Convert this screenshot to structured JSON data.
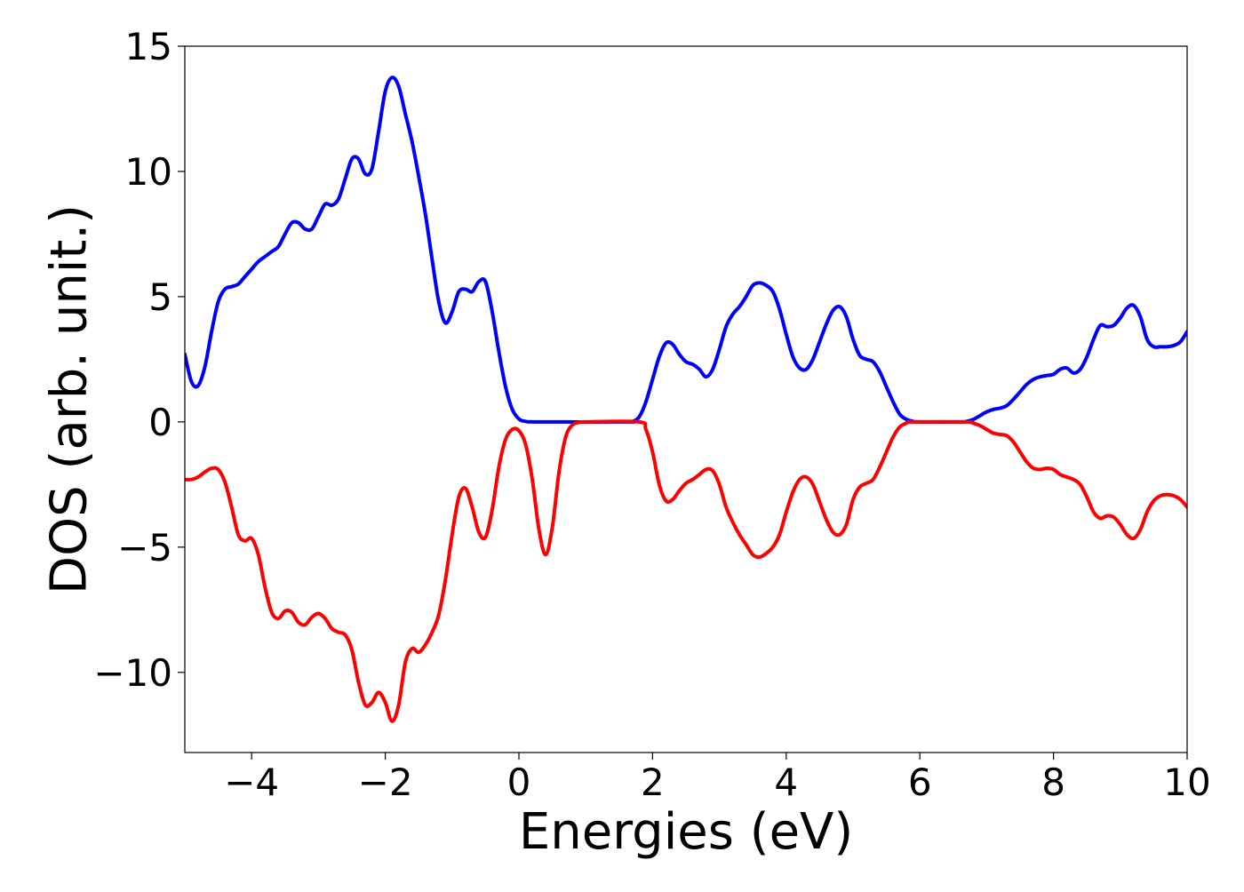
{
  "chart_data": {
    "type": "line",
    "title": "",
    "xlabel": "Energies (eV)",
    "ylabel": "DOS (arb. unit.)",
    "xlim": [
      -5,
      10
    ],
    "ylim": [
      -13.2,
      15
    ],
    "x_ticks": [
      -4,
      -2,
      0,
      2,
      4,
      6,
      8,
      10
    ],
    "x_tick_labels": [
      "−4",
      "−2",
      "0",
      "2",
      "4",
      "6",
      "8",
      "10"
    ],
    "y_ticks": [
      -10,
      -5,
      0,
      5,
      10,
      15
    ],
    "y_tick_labels": [
      "−10",
      "−5",
      "0",
      "5",
      "10",
      "15"
    ],
    "grid": false,
    "legend": "none",
    "series": [
      {
        "color": "#0000ff",
        "points": [
          [
            -5.0,
            2.7
          ],
          [
            -4.9,
            1.6
          ],
          [
            -4.8,
            1.45
          ],
          [
            -4.7,
            2.2
          ],
          [
            -4.6,
            3.6
          ],
          [
            -4.5,
            4.8
          ],
          [
            -4.4,
            5.3
          ],
          [
            -4.3,
            5.4
          ],
          [
            -4.2,
            5.5
          ],
          [
            -4.1,
            5.8
          ],
          [
            -4.0,
            6.1
          ],
          [
            -3.9,
            6.4
          ],
          [
            -3.8,
            6.6
          ],
          [
            -3.7,
            6.8
          ],
          [
            -3.6,
            7.0
          ],
          [
            -3.5,
            7.5
          ],
          [
            -3.4,
            7.95
          ],
          [
            -3.3,
            7.95
          ],
          [
            -3.2,
            7.7
          ],
          [
            -3.1,
            7.7
          ],
          [
            -3.0,
            8.2
          ],
          [
            -2.9,
            8.7
          ],
          [
            -2.8,
            8.65
          ],
          [
            -2.7,
            8.9
          ],
          [
            -2.6,
            9.7
          ],
          [
            -2.5,
            10.5
          ],
          [
            -2.4,
            10.5
          ],
          [
            -2.3,
            9.9
          ],
          [
            -2.2,
            10.1
          ],
          [
            -2.1,
            11.6
          ],
          [
            -2.0,
            13.2
          ],
          [
            -1.9,
            13.75
          ],
          [
            -1.8,
            13.4
          ],
          [
            -1.7,
            12.3
          ],
          [
            -1.6,
            11.2
          ],
          [
            -1.5,
            9.8
          ],
          [
            -1.4,
            8.3
          ],
          [
            -1.3,
            6.5
          ],
          [
            -1.2,
            4.8
          ],
          [
            -1.1,
            3.95
          ],
          [
            -1.0,
            4.4
          ],
          [
            -0.9,
            5.2
          ],
          [
            -0.8,
            5.3
          ],
          [
            -0.7,
            5.2
          ],
          [
            -0.6,
            5.6
          ],
          [
            -0.5,
            5.6
          ],
          [
            -0.4,
            4.4
          ],
          [
            -0.3,
            2.8
          ],
          [
            -0.2,
            1.4
          ],
          [
            -0.1,
            0.5
          ],
          [
            0.0,
            0.12
          ],
          [
            0.1,
            0.02
          ],
          [
            0.3,
            0.0
          ],
          [
            1.6,
            0.0
          ],
          [
            1.7,
            0.02
          ],
          [
            1.8,
            0.2
          ],
          [
            1.9,
            0.8
          ],
          [
            2.0,
            1.7
          ],
          [
            2.1,
            2.6
          ],
          [
            2.2,
            3.15
          ],
          [
            2.3,
            3.1
          ],
          [
            2.4,
            2.7
          ],
          [
            2.5,
            2.4
          ],
          [
            2.6,
            2.3
          ],
          [
            2.7,
            2.1
          ],
          [
            2.8,
            1.8
          ],
          [
            2.9,
            2.1
          ],
          [
            3.0,
            2.9
          ],
          [
            3.1,
            3.8
          ],
          [
            3.2,
            4.3
          ],
          [
            3.3,
            4.6
          ],
          [
            3.4,
            5.0
          ],
          [
            3.5,
            5.45
          ],
          [
            3.6,
            5.55
          ],
          [
            3.7,
            5.45
          ],
          [
            3.8,
            5.2
          ],
          [
            3.9,
            4.5
          ],
          [
            4.0,
            3.5
          ],
          [
            4.1,
            2.6
          ],
          [
            4.2,
            2.15
          ],
          [
            4.3,
            2.1
          ],
          [
            4.4,
            2.5
          ],
          [
            4.5,
            3.2
          ],
          [
            4.6,
            3.9
          ],
          [
            4.7,
            4.45
          ],
          [
            4.8,
            4.6
          ],
          [
            4.9,
            4.2
          ],
          [
            5.0,
            3.3
          ],
          [
            5.1,
            2.65
          ],
          [
            5.2,
            2.5
          ],
          [
            5.3,
            2.4
          ],
          [
            5.4,
            2.0
          ],
          [
            5.5,
            1.4
          ],
          [
            5.6,
            0.8
          ],
          [
            5.7,
            0.3
          ],
          [
            5.8,
            0.1
          ],
          [
            5.9,
            0.02
          ],
          [
            6.0,
            0.0
          ],
          [
            6.6,
            0.0
          ],
          [
            6.7,
            0.02
          ],
          [
            6.8,
            0.1
          ],
          [
            6.9,
            0.25
          ],
          [
            7.0,
            0.4
          ],
          [
            7.1,
            0.5
          ],
          [
            7.2,
            0.55
          ],
          [
            7.3,
            0.65
          ],
          [
            7.4,
            0.9
          ],
          [
            7.5,
            1.2
          ],
          [
            7.6,
            1.5
          ],
          [
            7.7,
            1.7
          ],
          [
            7.8,
            1.8
          ],
          [
            7.9,
            1.85
          ],
          [
            8.0,
            1.9
          ],
          [
            8.1,
            2.1
          ],
          [
            8.2,
            2.15
          ],
          [
            8.3,
            1.95
          ],
          [
            8.4,
            2.1
          ],
          [
            8.5,
            2.6
          ],
          [
            8.6,
            3.3
          ],
          [
            8.7,
            3.85
          ],
          [
            8.8,
            3.8
          ],
          [
            8.9,
            3.85
          ],
          [
            9.0,
            4.15
          ],
          [
            9.1,
            4.55
          ],
          [
            9.2,
            4.65
          ],
          [
            9.3,
            4.2
          ],
          [
            9.4,
            3.3
          ],
          [
            9.5,
            3.0
          ],
          [
            9.6,
            3.0
          ],
          [
            9.7,
            3.0
          ],
          [
            9.8,
            3.05
          ],
          [
            9.9,
            3.2
          ],
          [
            10.0,
            3.6
          ]
        ]
      },
      {
        "color": "#ff0000",
        "points": [
          [
            -5.0,
            -2.3
          ],
          [
            -4.9,
            -2.3
          ],
          [
            -4.8,
            -2.2
          ],
          [
            -4.7,
            -2.0
          ],
          [
            -4.6,
            -1.85
          ],
          [
            -4.5,
            -1.9
          ],
          [
            -4.4,
            -2.4
          ],
          [
            -4.3,
            -3.4
          ],
          [
            -4.2,
            -4.5
          ],
          [
            -4.1,
            -4.75
          ],
          [
            -4.0,
            -4.65
          ],
          [
            -3.9,
            -5.3
          ],
          [
            -3.8,
            -6.6
          ],
          [
            -3.7,
            -7.6
          ],
          [
            -3.6,
            -7.85
          ],
          [
            -3.5,
            -7.55
          ],
          [
            -3.4,
            -7.6
          ],
          [
            -3.3,
            -8.0
          ],
          [
            -3.2,
            -8.1
          ],
          [
            -3.1,
            -7.8
          ],
          [
            -3.0,
            -7.65
          ],
          [
            -2.9,
            -7.85
          ],
          [
            -2.8,
            -8.25
          ],
          [
            -2.7,
            -8.4
          ],
          [
            -2.6,
            -8.5
          ],
          [
            -2.5,
            -9.1
          ],
          [
            -2.4,
            -10.4
          ],
          [
            -2.3,
            -11.3
          ],
          [
            -2.2,
            -11.2
          ],
          [
            -2.1,
            -10.8
          ],
          [
            -2.0,
            -11.2
          ],
          [
            -1.9,
            -11.95
          ],
          [
            -1.8,
            -11.3
          ],
          [
            -1.7,
            -9.6
          ],
          [
            -1.6,
            -9.05
          ],
          [
            -1.5,
            -9.2
          ],
          [
            -1.4,
            -8.9
          ],
          [
            -1.3,
            -8.4
          ],
          [
            -1.2,
            -7.7
          ],
          [
            -1.1,
            -6.3
          ],
          [
            -1.0,
            -4.5
          ],
          [
            -0.9,
            -3.0
          ],
          [
            -0.8,
            -2.65
          ],
          [
            -0.7,
            -3.4
          ],
          [
            -0.6,
            -4.4
          ],
          [
            -0.5,
            -4.6
          ],
          [
            -0.4,
            -3.5
          ],
          [
            -0.3,
            -1.8
          ],
          [
            -0.2,
            -0.7
          ],
          [
            -0.1,
            -0.3
          ],
          [
            0.0,
            -0.35
          ],
          [
            0.1,
            -0.9
          ],
          [
            0.2,
            -2.3
          ],
          [
            0.3,
            -4.3
          ],
          [
            0.4,
            -5.3
          ],
          [
            0.5,
            -4.2
          ],
          [
            0.6,
            -2.0
          ],
          [
            0.7,
            -0.6
          ],
          [
            0.8,
            -0.12
          ],
          [
            0.9,
            -0.02
          ],
          [
            1.0,
            0.0
          ],
          [
            1.8,
            0.0
          ],
          [
            1.9,
            -0.3
          ],
          [
            2.0,
            -1.2
          ],
          [
            2.1,
            -2.5
          ],
          [
            2.2,
            -3.15
          ],
          [
            2.3,
            -3.1
          ],
          [
            2.4,
            -2.75
          ],
          [
            2.5,
            -2.45
          ],
          [
            2.6,
            -2.3
          ],
          [
            2.7,
            -2.1
          ],
          [
            2.8,
            -1.9
          ],
          [
            2.9,
            -1.95
          ],
          [
            3.0,
            -2.5
          ],
          [
            3.1,
            -3.4
          ],
          [
            3.2,
            -4.0
          ],
          [
            3.3,
            -4.5
          ],
          [
            3.4,
            -4.9
          ],
          [
            3.5,
            -5.3
          ],
          [
            3.6,
            -5.4
          ],
          [
            3.7,
            -5.25
          ],
          [
            3.8,
            -5.0
          ],
          [
            3.9,
            -4.5
          ],
          [
            4.0,
            -3.6
          ],
          [
            4.1,
            -2.8
          ],
          [
            4.2,
            -2.3
          ],
          [
            4.3,
            -2.2
          ],
          [
            4.4,
            -2.5
          ],
          [
            4.5,
            -3.2
          ],
          [
            4.6,
            -3.9
          ],
          [
            4.7,
            -4.4
          ],
          [
            4.8,
            -4.5
          ],
          [
            4.9,
            -4.1
          ],
          [
            5.0,
            -3.1
          ],
          [
            5.1,
            -2.6
          ],
          [
            5.2,
            -2.45
          ],
          [
            5.3,
            -2.3
          ],
          [
            5.4,
            -1.8
          ],
          [
            5.5,
            -1.2
          ],
          [
            5.6,
            -0.6
          ],
          [
            5.7,
            -0.2
          ],
          [
            5.8,
            -0.05
          ],
          [
            5.9,
            0.0
          ],
          [
            6.7,
            0.0
          ],
          [
            6.8,
            -0.05
          ],
          [
            6.9,
            -0.15
          ],
          [
            7.0,
            -0.3
          ],
          [
            7.1,
            -0.45
          ],
          [
            7.2,
            -0.5
          ],
          [
            7.3,
            -0.55
          ],
          [
            7.4,
            -0.8
          ],
          [
            7.5,
            -1.2
          ],
          [
            7.6,
            -1.6
          ],
          [
            7.7,
            -1.85
          ],
          [
            7.8,
            -1.9
          ],
          [
            7.9,
            -1.85
          ],
          [
            8.0,
            -1.9
          ],
          [
            8.1,
            -2.1
          ],
          [
            8.2,
            -2.2
          ],
          [
            8.3,
            -2.3
          ],
          [
            8.4,
            -2.5
          ],
          [
            8.5,
            -3.0
          ],
          [
            8.6,
            -3.6
          ],
          [
            8.7,
            -3.85
          ],
          [
            8.8,
            -3.75
          ],
          [
            8.9,
            -3.8
          ],
          [
            9.0,
            -4.1
          ],
          [
            9.1,
            -4.5
          ],
          [
            9.2,
            -4.65
          ],
          [
            9.3,
            -4.3
          ],
          [
            9.4,
            -3.6
          ],
          [
            9.5,
            -3.15
          ],
          [
            9.6,
            -2.95
          ],
          [
            9.7,
            -2.9
          ],
          [
            9.8,
            -2.95
          ],
          [
            9.9,
            -3.1
          ],
          [
            10.0,
            -3.4
          ]
        ]
      }
    ]
  }
}
